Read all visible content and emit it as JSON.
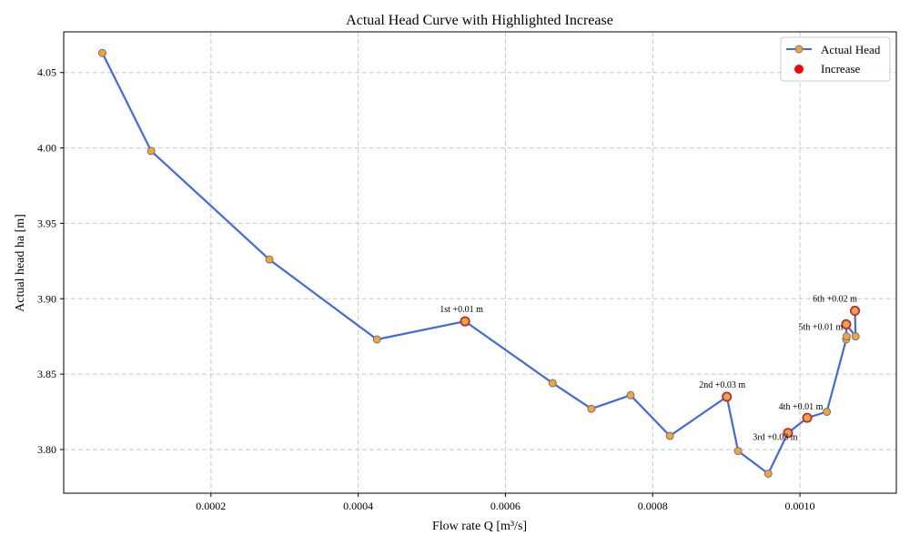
{
  "chart_data": {
    "type": "line",
    "title": "Actual Head Curve with Highlighted Increase",
    "xlabel": "Flow rate Q [m³/s]",
    "ylabel": "Actual head ha [m]",
    "xlim": [
      0.0,
      0.001131
    ],
    "ylim": [
      3.771,
      4.077
    ],
    "xticks": [
      0.0002,
      0.0004,
      0.0006,
      0.0008,
      0.001
    ],
    "xtick_labels": [
      "0.0002",
      "0.0004",
      "0.0006",
      "0.0008",
      "0.0010"
    ],
    "yticks": [
      3.8,
      3.85,
      3.9,
      3.95,
      4.0,
      4.05
    ],
    "ytick_labels": [
      "3.80",
      "3.85",
      "3.90",
      "3.95",
      "4.00",
      "4.05"
    ],
    "grid": true,
    "legend_position": "top-right",
    "series": [
      {
        "name": "Actual Head",
        "color": "#4169e1",
        "marker_color": "#f5a623",
        "x": [
          5.25e-05,
          0.0001188,
          0.0002794,
          0.0004255,
          0.0005452,
          0.0006641,
          0.0007168,
          0.00077,
          0.0008234,
          0.0009007,
          0.000916,
          0.000957,
          0.0009838,
          0.0010099,
          0.0010366,
          0.0010629,
          0.0010634,
          0.0010629,
          0.0010756,
          0.0010748
        ],
        "y": [
          4.063,
          3.998,
          3.926,
          3.873,
          3.885,
          3.844,
          3.827,
          3.836,
          3.809,
          3.835,
          3.799,
          3.784,
          3.811,
          3.821,
          3.825,
          3.873,
          3.875,
          3.883,
          3.875,
          3.892
        ]
      },
      {
        "name": "Increase",
        "color": "#ff0000",
        "points": [
          {
            "x": 0.0005452,
            "y": 3.885,
            "label": "1st +0.01 m"
          },
          {
            "x": 0.0009007,
            "y": 3.835,
            "label": "2nd +0.03 m"
          },
          {
            "x": 0.0009838,
            "y": 3.811,
            "label": "3rd +0.03 m"
          },
          {
            "x": 0.0010099,
            "y": 3.821,
            "label": "4th +0.01 m"
          },
          {
            "x": 0.0010629,
            "y": 3.883,
            "label": "5th +0.01 m"
          },
          {
            "x": 0.0010748,
            "y": 3.892,
            "label": "6th +0.02 m"
          }
        ]
      }
    ]
  }
}
